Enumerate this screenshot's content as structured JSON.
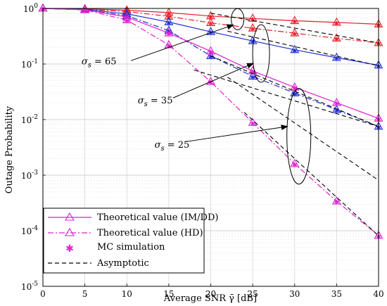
{
  "chart_data": {
    "type": "line",
    "xlabel": "Average SNR γ̄ [dB]",
    "ylabel": "Outage Probability",
    "xlim": [
      0,
      40
    ],
    "ylim_log10": [
      -5,
      0
    ],
    "y_scale": "log",
    "grid": true,
    "x_ticks": [
      "0",
      "5",
      "10",
      "15",
      "20",
      "25",
      "30",
      "35",
      "40"
    ],
    "y_ticks": [
      {
        "base": "10",
        "exp": "0"
      },
      {
        "base": "10",
        "exp": "-1"
      },
      {
        "base": "10",
        "exp": "-2"
      },
      {
        "base": "10",
        "exp": "-3"
      },
      {
        "base": "10",
        "exp": "-4"
      },
      {
        "base": "10",
        "exp": "-5"
      }
    ],
    "legend_position": "bottom-left",
    "legend": [
      {
        "label": "Theoretical value (IM/DD)",
        "style": "solid-triangle"
      },
      {
        "label": "Theoretical value (HD)",
        "style": "dashdot-triangle"
      },
      {
        "label": "MC simulation",
        "style": "star"
      },
      {
        "label": "Asymptotic",
        "style": "dashed"
      }
    ],
    "annotations": [
      {
        "sym": "σ",
        "sub": "s",
        "value": "= 65"
      },
      {
        "sym": "σ",
        "sub": "s",
        "value": "= 35"
      },
      {
        "sym": "σ",
        "sub": "s",
        "value": "= 25"
      }
    ],
    "x": [
      0,
      5,
      10,
      15,
      20,
      25,
      30,
      35,
      40
    ],
    "series": [
      {
        "group": "65",
        "kind": "IM/DD",
        "color": "#e8202a",
        "dash": "solid",
        "y": [
          1.0,
          0.98,
          0.93,
          0.84,
          0.73,
          0.66,
          0.6,
          0.56,
          0.52
        ]
      },
      {
        "group": "65",
        "kind": "HD",
        "color": "#e8202a",
        "dash": "dashdot",
        "y": [
          1.0,
          0.97,
          0.88,
          0.72,
          0.55,
          0.44,
          0.36,
          0.29,
          0.24
        ]
      },
      {
        "group": "35",
        "kind": "IM/DD",
        "color": "#1f2fd0",
        "dash": "solid",
        "y": [
          1.0,
          0.96,
          0.8,
          0.57,
          0.38,
          0.26,
          0.18,
          0.13,
          0.095
        ]
      },
      {
        "group": "35",
        "kind": "HD",
        "color": "#1f2fd0",
        "dash": "dashdot",
        "y": [
          1.0,
          0.95,
          0.74,
          0.4,
          0.14,
          0.06,
          0.03,
          0.015,
          0.0075
        ]
      },
      {
        "group": "25",
        "kind": "IM/DD",
        "color": "#e020d0",
        "dash": "solid",
        "y": [
          1.0,
          0.95,
          0.7,
          0.36,
          0.17,
          0.075,
          0.038,
          0.02,
          0.0105
        ]
      },
      {
        "group": "25",
        "kind": "HD",
        "color": "#e020d0",
        "dash": "dashdot",
        "y": [
          1.0,
          0.94,
          0.62,
          0.22,
          0.048,
          0.0088,
          0.0016,
          0.00034,
          8.2e-05
        ]
      }
    ],
    "asymptotes": [
      {
        "x": [
          18,
          40
        ],
        "y": [
          0.078,
          0.0075
        ]
      },
      {
        "x": [
          20,
          40
        ],
        "y": [
          0.14,
          0.0075
        ]
      },
      {
        "x": [
          22,
          40
        ],
        "y": [
          0.058,
          0.00081
        ]
      },
      {
        "x": [
          24,
          40
        ],
        "y": [
          0.0135,
          8.1e-05
        ]
      },
      {
        "x": [
          20,
          40
        ],
        "y": [
          0.82,
          0.24
        ]
      },
      {
        "x": [
          22,
          40
        ],
        "y": [
          0.39,
          0.093
        ]
      }
    ]
  }
}
